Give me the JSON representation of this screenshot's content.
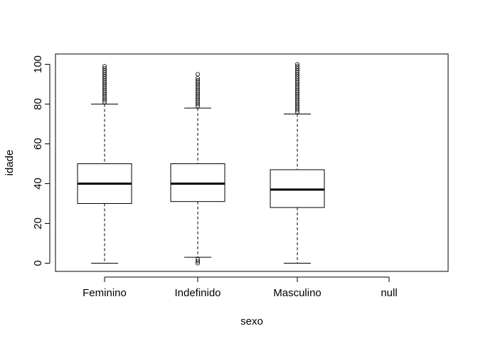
{
  "chart_data": {
    "type": "boxplot",
    "title": "",
    "xlabel": "sexo",
    "ylabel": "idade",
    "ylim": [
      -4,
      104
    ],
    "yticks": [
      0,
      20,
      40,
      60,
      80,
      100
    ],
    "categories": [
      "Feminino",
      "Indefinido",
      "Masculino",
      "null"
    ],
    "grid": false,
    "boxes": [
      {
        "category": "Feminino",
        "whisker_low": 0,
        "q1": 30,
        "median": 40,
        "q3": 50,
        "whisker_high": 80,
        "outliers": [
          81,
          82,
          83,
          84,
          85,
          86,
          87,
          88,
          89,
          90,
          91,
          92,
          93,
          94,
          95,
          96,
          97,
          98,
          99
        ]
      },
      {
        "category": "Indefinido",
        "whisker_low": 3,
        "q1": 31,
        "median": 40,
        "q3": 50,
        "whisker_high": 78,
        "outliers": [
          0,
          1,
          2,
          79,
          80,
          81,
          82,
          83,
          84,
          85,
          86,
          87,
          88,
          89,
          90,
          91,
          92,
          93,
          95
        ]
      },
      {
        "category": "Masculino",
        "whisker_low": 0,
        "q1": 28,
        "median": 37,
        "q3": 47,
        "whisker_high": 75,
        "outliers": [
          76,
          77,
          78,
          79,
          80,
          81,
          82,
          83,
          84,
          85,
          86,
          87,
          88,
          89,
          90,
          91,
          92,
          93,
          94,
          95,
          96,
          97,
          98,
          99,
          100
        ]
      },
      {
        "category": "null",
        "whisker_low": null,
        "q1": null,
        "median": null,
        "q3": null,
        "whisker_high": null,
        "outliers": []
      }
    ]
  }
}
